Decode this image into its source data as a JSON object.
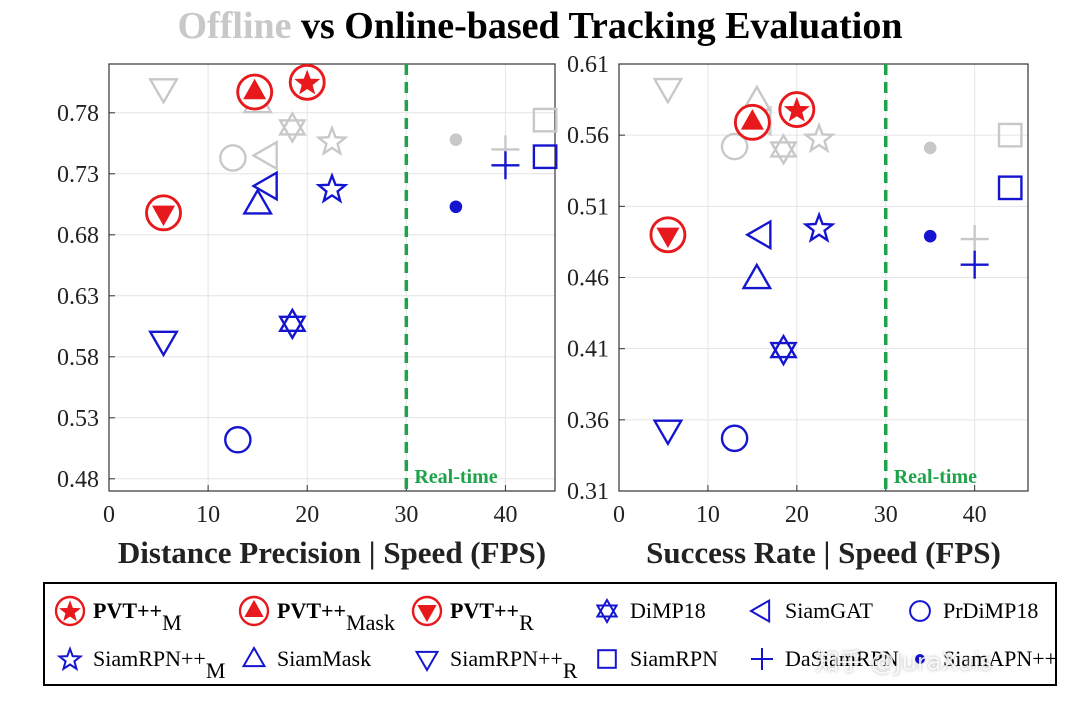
{
  "title": {
    "offline_word": "Offline",
    "rest": " vs Online-based Tracking Evaluation"
  },
  "colors": {
    "red": "#e8191c",
    "blue": "#1515d0",
    "gray": "#c8c8c8",
    "realtime": "#1fa34a"
  },
  "chart_data": [
    {
      "type": "scatter",
      "xlabel": "Distance Precision | Speed (FPS)",
      "xlim": [
        0,
        45
      ],
      "ylim": [
        0.47,
        0.82
      ],
      "xticks": [
        "0",
        "10",
        "20",
        "30",
        "40"
      ],
      "yticks": [
        "0.48",
        "0.53",
        "0.58",
        "0.63",
        "0.68",
        "0.73",
        "0.78"
      ],
      "realtime_x": 30,
      "realtime_label": "Real-time",
      "points": [
        {
          "tracker": "PVT++_M",
          "marker": "star-circle",
          "color": "red",
          "x": 20.0,
          "y": 0.805
        },
        {
          "tracker": "PVT++_Mask",
          "marker": "triangle-circle",
          "color": "red",
          "x": 14.7,
          "y": 0.797
        },
        {
          "tracker": "PVT++_R",
          "marker": "invtriangle-circle",
          "color": "red",
          "x": 5.5,
          "y": 0.698
        },
        {
          "tracker": "DiMP18",
          "marker": "hexagram",
          "color": "blue",
          "x": 18.5,
          "y": 0.607
        },
        {
          "tracker": "SiamGAT",
          "marker": "lefttriangle",
          "color": "blue",
          "x": 16.0,
          "y": 0.72
        },
        {
          "tracker": "PrDiMP18",
          "marker": "circle",
          "color": "blue",
          "x": 13.0,
          "y": 0.512
        },
        {
          "tracker": "SiamRPN++_M",
          "marker": "star",
          "color": "blue",
          "x": 22.5,
          "y": 0.718
        },
        {
          "tracker": "SiamMask",
          "marker": "triangle",
          "color": "blue",
          "x": 15.0,
          "y": 0.705
        },
        {
          "tracker": "SiamRPN++_R",
          "marker": "invtriangle",
          "color": "blue",
          "x": 5.5,
          "y": 0.593
        },
        {
          "tracker": "SiamRPN",
          "marker": "square",
          "color": "blue",
          "x": 44.0,
          "y": 0.744
        },
        {
          "tracker": "DaSiamRPN",
          "marker": "plus",
          "color": "blue",
          "x": 40.0,
          "y": 0.737
        },
        {
          "tracker": "SiamAPN++",
          "marker": "dot",
          "color": "blue",
          "x": 35.0,
          "y": 0.703
        },
        {
          "tracker": "SiamRPN++_R (offline)",
          "marker": "invtriangle",
          "color": "gray",
          "x": 5.5,
          "y": 0.8
        },
        {
          "tracker": "SiamMask (offline)",
          "marker": "triangle",
          "color": "gray",
          "x": 15.0,
          "y": 0.788
        },
        {
          "tracker": "DiMP18 (offline)",
          "marker": "hexagram",
          "color": "gray",
          "x": 18.5,
          "y": 0.768
        },
        {
          "tracker": "SiamRPN++_M (offline)",
          "marker": "star",
          "color": "gray",
          "x": 22.5,
          "y": 0.757
        },
        {
          "tracker": "PrDiMP18 (offline)",
          "marker": "circle",
          "color": "gray",
          "x": 12.5,
          "y": 0.743
        },
        {
          "tracker": "SiamGAT (offline)",
          "marker": "lefttriangle",
          "color": "gray",
          "x": 16.0,
          "y": 0.745
        },
        {
          "tracker": "SiamAPN++ (offline)",
          "marker": "dot",
          "color": "gray",
          "x": 35.0,
          "y": 0.758
        },
        {
          "tracker": "SiamRPN (offline)",
          "marker": "square",
          "color": "gray",
          "x": 44.0,
          "y": 0.774
        },
        {
          "tracker": "DaSiamRPN (offline)",
          "marker": "plus",
          "color": "gray",
          "x": 40.0,
          "y": 0.75
        }
      ]
    },
    {
      "type": "scatter",
      "xlabel": "Success Rate | Speed (FPS)",
      "xlim": [
        0,
        46
      ],
      "ylim": [
        0.31,
        0.61
      ],
      "xticks": [
        "0",
        "10",
        "20",
        "30",
        "40"
      ],
      "yticks": [
        "0.31",
        "0.36",
        "0.41",
        "0.46",
        "0.51",
        "0.56",
        "0.61"
      ],
      "realtime_x": 30,
      "realtime_label": "Real-time",
      "points": [
        {
          "tracker": "PVT++_M",
          "marker": "star-circle",
          "color": "red",
          "x": 20.0,
          "y": 0.578
        },
        {
          "tracker": "PVT++_Mask",
          "marker": "triangle-circle",
          "color": "red",
          "x": 15.0,
          "y": 0.569
        },
        {
          "tracker": "PVT++_R",
          "marker": "invtriangle-circle",
          "color": "red",
          "x": 5.5,
          "y": 0.49
        },
        {
          "tracker": "DiMP18",
          "marker": "hexagram",
          "color": "blue",
          "x": 18.5,
          "y": 0.409
        },
        {
          "tracker": "SiamGAT",
          "marker": "lefttriangle",
          "color": "blue",
          "x": 16.0,
          "y": 0.49
        },
        {
          "tracker": "PrDiMP18",
          "marker": "circle",
          "color": "blue",
          "x": 13.0,
          "y": 0.347
        },
        {
          "tracker": "SiamRPN++_M",
          "marker": "star",
          "color": "blue",
          "x": 22.5,
          "y": 0.495
        },
        {
          "tracker": "SiamMask",
          "marker": "triangle",
          "color": "blue",
          "x": 15.5,
          "y": 0.459
        },
        {
          "tracker": "SiamRPN++_R",
          "marker": "invtriangle",
          "color": "blue",
          "x": 5.5,
          "y": 0.353
        },
        {
          "tracker": "SiamRPN",
          "marker": "square",
          "color": "blue",
          "x": 44.0,
          "y": 0.523
        },
        {
          "tracker": "DaSiamRPN",
          "marker": "plus",
          "color": "blue",
          "x": 40.0,
          "y": 0.469
        },
        {
          "tracker": "SiamAPN++",
          "marker": "dot",
          "color": "blue",
          "x": 35.0,
          "y": 0.489
        },
        {
          "tracker": "SiamRPN++_R (offline)",
          "marker": "invtriangle",
          "color": "gray",
          "x": 5.5,
          "y": 0.593
        },
        {
          "tracker": "SiamMask (offline)",
          "marker": "triangle",
          "color": "gray",
          "x": 15.5,
          "y": 0.584
        },
        {
          "tracker": "DiMP18 (offline)",
          "marker": "hexagram",
          "color": "gray",
          "x": 18.5,
          "y": 0.55
        },
        {
          "tracker": "SiamRPN++_M (offline)",
          "marker": "star",
          "color": "gray",
          "x": 22.5,
          "y": 0.558
        },
        {
          "tracker": "PrDiMP18 (offline)",
          "marker": "circle",
          "color": "gray",
          "x": 13.0,
          "y": 0.552
        },
        {
          "tracker": "SiamGAT (offline)",
          "marker": "lefttriangle",
          "color": "gray",
          "x": 16.0,
          "y": 0.57
        },
        {
          "tracker": "SiamAPN++ (offline)",
          "marker": "dot",
          "color": "gray",
          "x": 35.0,
          "y": 0.551
        },
        {
          "tracker": "SiamRPN (offline)",
          "marker": "square",
          "color": "gray",
          "x": 44.0,
          "y": 0.56
        },
        {
          "tracker": "DaSiamRPN (offline)",
          "marker": "plus",
          "color": "gray",
          "x": 40.0,
          "y": 0.487
        }
      ]
    }
  ],
  "legend": [
    {
      "main": "PVT++",
      "sub": "M",
      "marker": "star-circle",
      "color": "red",
      "bold": true
    },
    {
      "main": "PVT++",
      "sub": "Mask",
      "marker": "triangle-circle",
      "color": "red",
      "bold": true
    },
    {
      "main": "PVT++",
      "sub": "R",
      "marker": "invtriangle-circle",
      "color": "red",
      "bold": true
    },
    {
      "main": "DiMP18",
      "sub": "",
      "marker": "hexagram",
      "color": "blue",
      "bold": false
    },
    {
      "main": "SiamGAT",
      "sub": "",
      "marker": "lefttriangle",
      "color": "blue",
      "bold": false
    },
    {
      "main": "PrDiMP18",
      "sub": "",
      "marker": "circle",
      "color": "blue",
      "bold": false
    },
    {
      "main": "SiamRPN++",
      "sub": "M",
      "marker": "star",
      "color": "blue",
      "bold": false
    },
    {
      "main": "SiamMask",
      "sub": "",
      "marker": "triangle",
      "color": "blue",
      "bold": false
    },
    {
      "main": "SiamRPN++",
      "sub": "R",
      "marker": "invtriangle",
      "color": "blue",
      "bold": false
    },
    {
      "main": "SiamRPN",
      "sub": "",
      "marker": "square",
      "color": "blue",
      "bold": false
    },
    {
      "main": "DaSiamRPN",
      "sub": "",
      "marker": "plus",
      "color": "blue",
      "bold": false
    },
    {
      "main": "SiamAPN++",
      "sub": "",
      "marker": "dot",
      "color": "blue",
      "bold": false
    }
  ],
  "watermark": "知乎 @JuraXuis"
}
